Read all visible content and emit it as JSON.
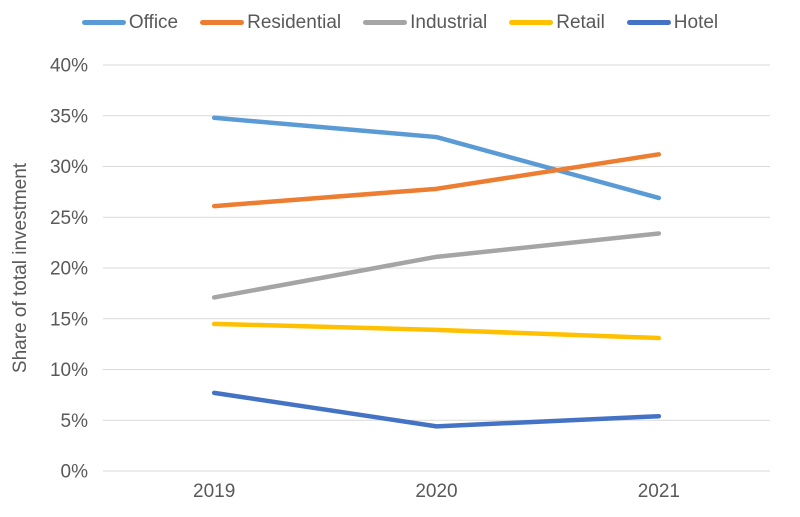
{
  "chart_data": {
    "type": "line",
    "title": "",
    "xlabel": "",
    "ylabel": "Share of total investment",
    "categories": [
      "2019",
      "2020",
      "2021"
    ],
    "series": [
      {
        "name": "Office",
        "color": "#5B9BD5",
        "values": [
          34.8,
          32.9,
          26.9
        ]
      },
      {
        "name": "Residential",
        "color": "#ED7D31",
        "values": [
          26.1,
          27.8,
          31.2
        ]
      },
      {
        "name": "Industrial",
        "color": "#A5A5A5",
        "values": [
          17.1,
          21.1,
          23.4
        ]
      },
      {
        "name": "Retail",
        "color": "#FFC000",
        "values": [
          14.5,
          13.9,
          13.1
        ]
      },
      {
        "name": "Hotel",
        "color": "#4472C4",
        "values": [
          7.7,
          4.4,
          5.4
        ]
      }
    ],
    "ylim": [
      0,
      40
    ],
    "yticks": [
      {
        "label": "0%",
        "value": 0
      },
      {
        "label": "5%",
        "value": 5
      },
      {
        "label": "10%",
        "value": 10
      },
      {
        "label": "15%",
        "value": 15
      },
      {
        "label": "20%",
        "value": 20
      },
      {
        "label": "25%",
        "value": 25
      },
      {
        "label": "30%",
        "value": 30
      },
      {
        "label": "35%",
        "value": 35
      },
      {
        "label": "40%",
        "value": 40
      }
    ],
    "grid": "horizontal",
    "legend_position": "top",
    "colors": {
      "grid": "#D9D9D9",
      "axis_text": "#595959",
      "background": "#FFFFFF"
    },
    "line_width": 4.5
  }
}
